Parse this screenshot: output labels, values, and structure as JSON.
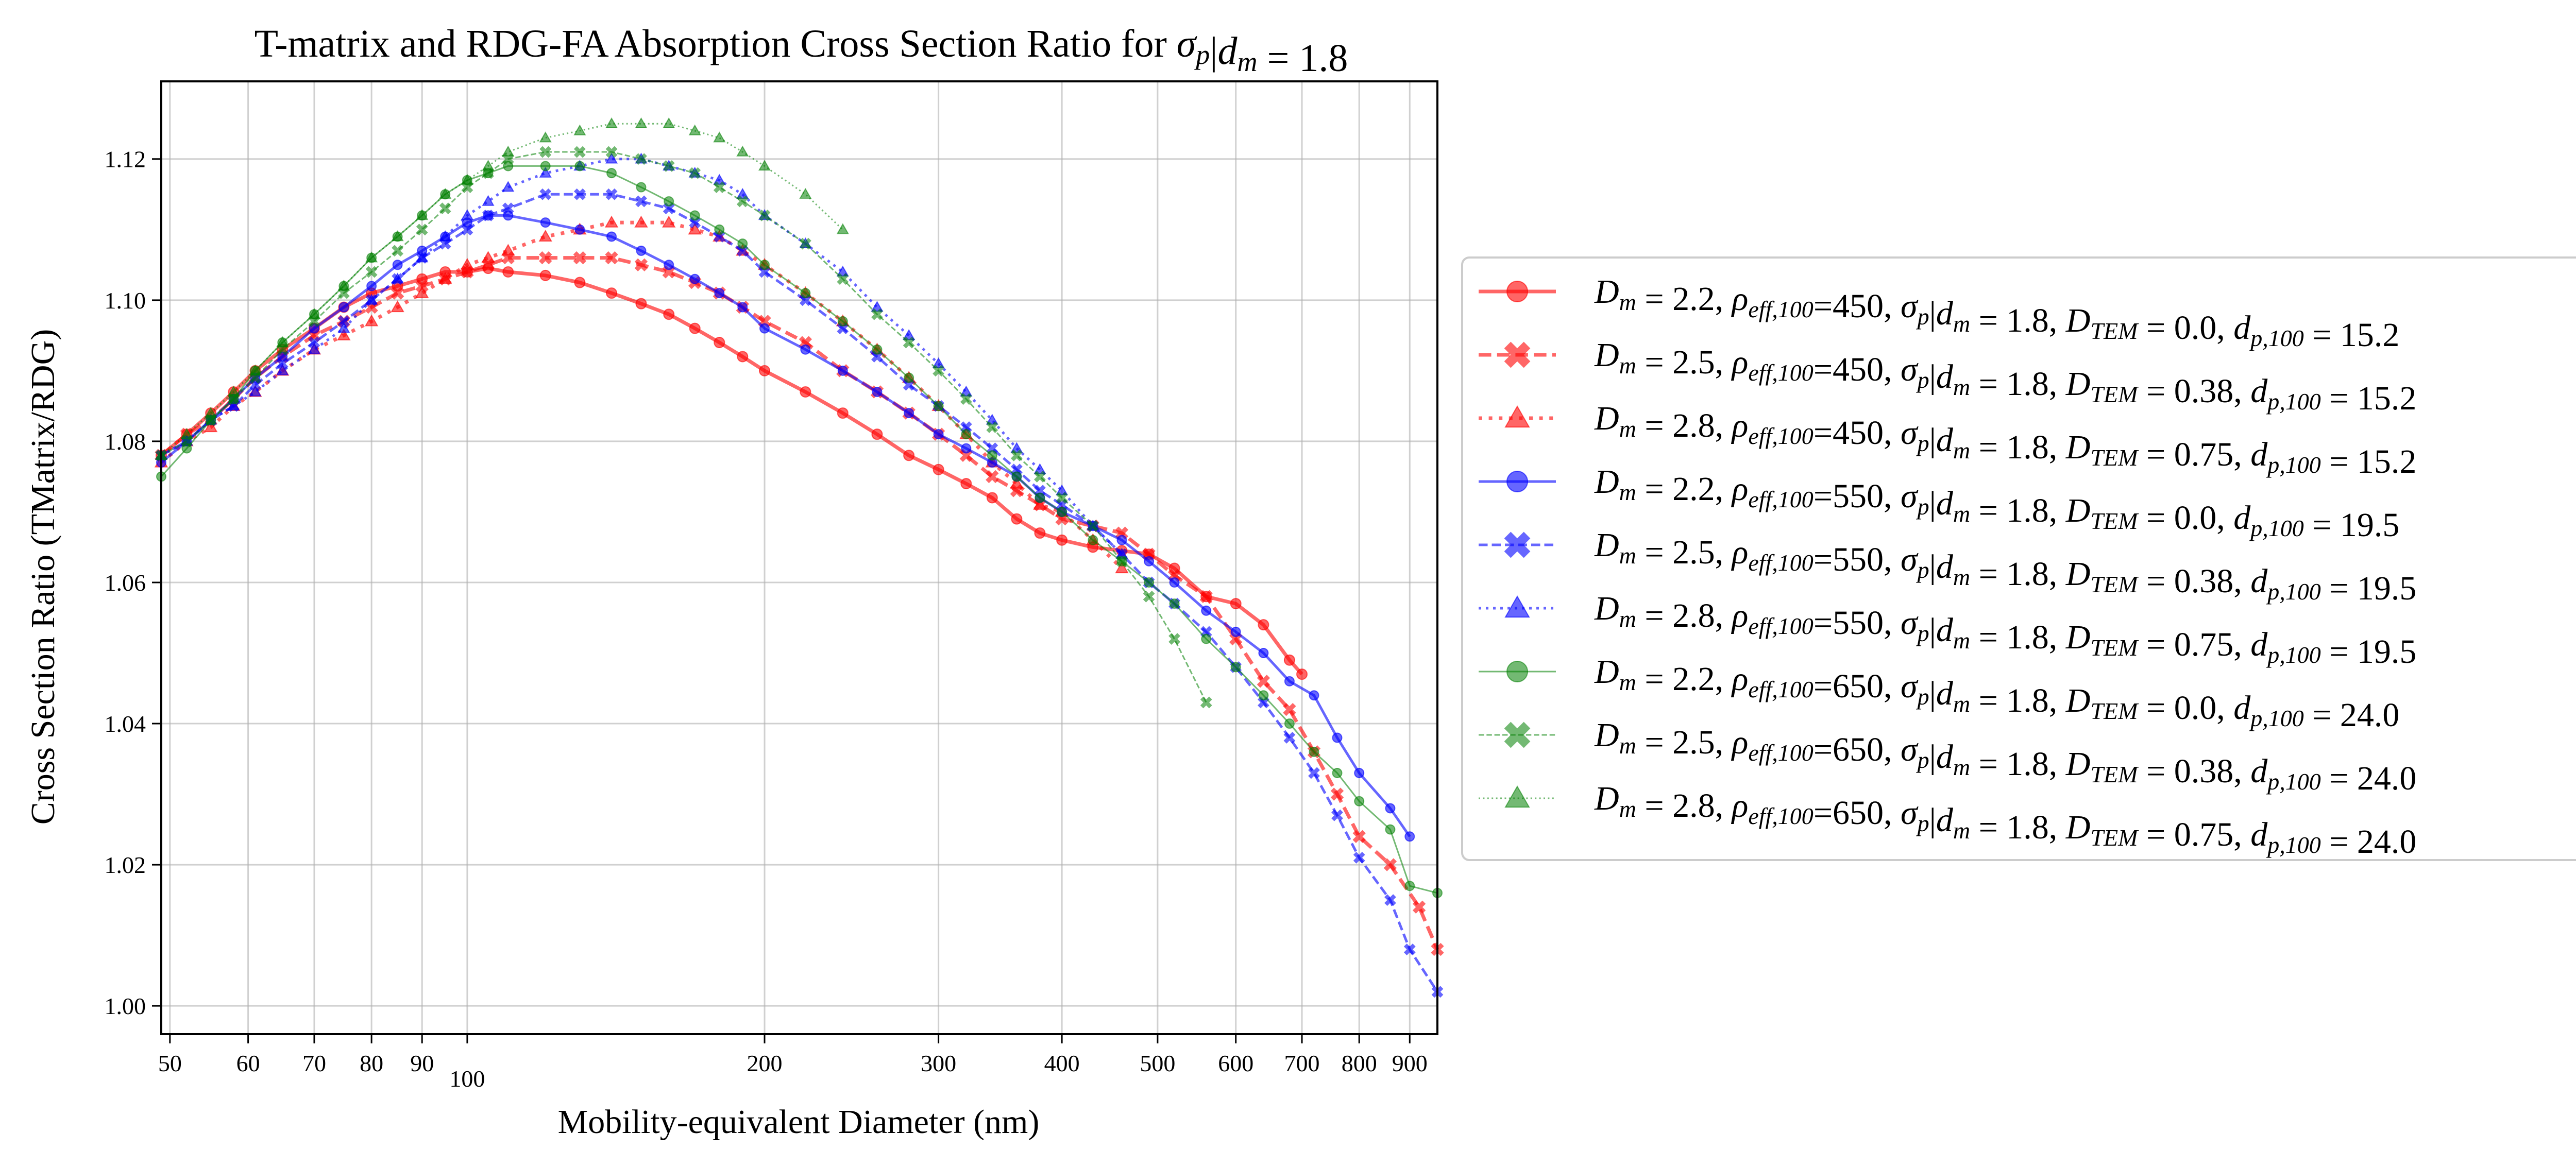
{
  "chart_data": {
    "type": "line",
    "title": "T-matrix and RDG-FA Absorption Cross Section Ratio for σp|dm = 1.8",
    "xlabel": "Mobility-equivalent Diameter (nm)",
    "ylabel": "Cross Section Ratio (TMatrix/RDG)",
    "xscale": "log",
    "xlim": [
      49,
      960
    ],
    "ylim": [
      0.996,
      1.131
    ],
    "xticks": [
      {
        "value": 50,
        "label": "50"
      },
      {
        "value": 60,
        "label": "60"
      },
      {
        "value": 70,
        "label": "70"
      },
      {
        "value": 80,
        "label": "80"
      },
      {
        "value": 90,
        "label": "90"
      },
      {
        "value": 100,
        "label": "100"
      },
      {
        "value": 200,
        "label": "200"
      },
      {
        "value": 300,
        "label": "300"
      },
      {
        "value": 400,
        "label": "400"
      },
      {
        "value": 500,
        "label": "500"
      },
      {
        "value": 600,
        "label": "600"
      },
      {
        "value": 700,
        "label": "700"
      },
      {
        "value": 800,
        "label": "800"
      },
      {
        "value": 900,
        "label": "900"
      }
    ],
    "yticks": [
      {
        "value": 1.0,
        "label": "1.00"
      },
      {
        "value": 1.02,
        "label": "1.02"
      },
      {
        "value": 1.04,
        "label": "1.04"
      },
      {
        "value": 1.06,
        "label": "1.06"
      },
      {
        "value": 1.08,
        "label": "1.08"
      },
      {
        "value": 1.1,
        "label": "1.10"
      },
      {
        "value": 1.12,
        "label": "1.12"
      }
    ],
    "grid": true,
    "legend_position": "right",
    "series": [
      {
        "name": "Dm = 2.2, ρeff,100=450, σp|dm = 1.8, DTEM = 0.0, dp,100 = 15.2",
        "color": "#ff0000",
        "dash": "solid",
        "marker": "circle",
        "style": "bold",
        "x": [
          49,
          52,
          55,
          58,
          61,
          65,
          70,
          75,
          80,
          85,
          90,
          95,
          100,
          105,
          110,
          120,
          130,
          140,
          150,
          160,
          170,
          180,
          190,
          200,
          220,
          240,
          260,
          280,
          300,
          320,
          340,
          360,
          380,
          400,
          430,
          460,
          490,
          520,
          560,
          600,
          640,
          680,
          700
        ],
        "y": [
          1.078,
          1.081,
          1.084,
          1.087,
          1.09,
          1.093,
          1.096,
          1.099,
          1.101,
          1.102,
          1.103,
          1.104,
          1.104,
          1.1045,
          1.104,
          1.1035,
          1.1025,
          1.101,
          1.0995,
          1.098,
          1.096,
          1.094,
          1.092,
          1.09,
          1.087,
          1.084,
          1.081,
          1.078,
          1.076,
          1.074,
          1.072,
          1.069,
          1.067,
          1.066,
          1.065,
          1.0645,
          1.064,
          1.062,
          1.058,
          1.057,
          1.054,
          1.049,
          1.047
        ]
      },
      {
        "name": "Dm = 2.5, ρeff,100=450, σp|dm = 1.8, DTEM = 0.38, dp,100 = 15.2",
        "color": "#ff0000",
        "dash": "dashed",
        "marker": "x",
        "style": "bold",
        "x": [
          49,
          52,
          55,
          58,
          61,
          65,
          70,
          75,
          80,
          85,
          90,
          95,
          100,
          105,
          110,
          120,
          130,
          140,
          150,
          160,
          170,
          180,
          190,
          200,
          220,
          240,
          260,
          280,
          300,
          320,
          340,
          360,
          380,
          400,
          430,
          460,
          490,
          520,
          560,
          600,
          640,
          680,
          720,
          760,
          800,
          860,
          920,
          960
        ],
        "y": [
          1.078,
          1.081,
          1.083,
          1.086,
          1.089,
          1.092,
          1.095,
          1.097,
          1.099,
          1.101,
          1.102,
          1.103,
          1.104,
          1.105,
          1.106,
          1.106,
          1.106,
          1.106,
          1.105,
          1.104,
          1.1025,
          1.101,
          1.099,
          1.097,
          1.094,
          1.09,
          1.087,
          1.084,
          1.081,
          1.078,
          1.075,
          1.073,
          1.071,
          1.069,
          1.068,
          1.067,
          1.064,
          1.061,
          1.058,
          1.052,
          1.046,
          1.042,
          1.036,
          1.03,
          1.024,
          1.02,
          1.014,
          1.008
        ]
      },
      {
        "name": "Dm = 2.8, ρeff,100=450, σp|dm = 1.8, DTEM = 0.75, dp,100 = 15.2",
        "color": "#ff0000",
        "dash": "dotted",
        "marker": "triangle",
        "style": "bold",
        "x": [
          49,
          52,
          55,
          58,
          61,
          65,
          70,
          75,
          80,
          85,
          90,
          95,
          100,
          105,
          110,
          120,
          130,
          140,
          150,
          160,
          170,
          180,
          190,
          200,
          220,
          240,
          260,
          280,
          300,
          320,
          340,
          360,
          380,
          400,
          430,
          460
        ],
        "y": [
          1.077,
          1.08,
          1.082,
          1.085,
          1.087,
          1.09,
          1.093,
          1.095,
          1.097,
          1.099,
          1.101,
          1.103,
          1.105,
          1.106,
          1.107,
          1.109,
          1.11,
          1.111,
          1.111,
          1.111,
          1.11,
          1.109,
          1.107,
          1.105,
          1.101,
          1.097,
          1.093,
          1.089,
          1.085,
          1.081,
          1.077,
          1.074,
          1.071,
          1.07,
          1.066,
          1.062
        ]
      },
      {
        "name": "Dm = 2.2, ρeff,100=550, σp|dm = 1.8, DTEM = 0.0, dp,100 = 19.5",
        "color": "#0000ff",
        "dash": "solid",
        "marker": "circle",
        "style": "light",
        "x": [
          49,
          52,
          55,
          58,
          61,
          65,
          70,
          75,
          80,
          85,
          90,
          95,
          100,
          105,
          110,
          120,
          130,
          140,
          150,
          160,
          170,
          180,
          190,
          200,
          220,
          240,
          260,
          280,
          300,
          320,
          340,
          360,
          380,
          400,
          430,
          460,
          490,
          520,
          560,
          600,
          640,
          680,
          720,
          760,
          800,
          860,
          900
        ],
        "y": [
          1.077,
          1.08,
          1.083,
          1.086,
          1.089,
          1.092,
          1.096,
          1.099,
          1.102,
          1.105,
          1.107,
          1.109,
          1.111,
          1.112,
          1.112,
          1.111,
          1.11,
          1.109,
          1.107,
          1.105,
          1.103,
          1.101,
          1.099,
          1.096,
          1.093,
          1.09,
          1.087,
          1.084,
          1.081,
          1.079,
          1.077,
          1.075,
          1.072,
          1.07,
          1.068,
          1.066,
          1.063,
          1.06,
          1.056,
          1.053,
          1.05,
          1.046,
          1.044,
          1.038,
          1.033,
          1.028,
          1.024
        ]
      },
      {
        "name": "Dm = 2.5, ρeff,100=550, σp|dm = 1.8, DTEM = 0.38, dp,100 = 19.5",
        "color": "#0000ff",
        "dash": "dashed",
        "marker": "x",
        "style": "light",
        "x": [
          49,
          52,
          55,
          58,
          61,
          65,
          70,
          75,
          80,
          85,
          90,
          95,
          100,
          105,
          110,
          120,
          130,
          140,
          150,
          160,
          170,
          180,
          190,
          200,
          220,
          240,
          260,
          280,
          300,
          320,
          340,
          360,
          380,
          400,
          430,
          460,
          490,
          520,
          560,
          600,
          640,
          680,
          720,
          760,
          800,
          860,
          900,
          960
        ],
        "y": [
          1.078,
          1.08,
          1.083,
          1.085,
          1.088,
          1.091,
          1.094,
          1.097,
          1.1,
          1.103,
          1.106,
          1.108,
          1.11,
          1.112,
          1.113,
          1.115,
          1.115,
          1.115,
          1.114,
          1.113,
          1.111,
          1.109,
          1.107,
          1.104,
          1.1,
          1.096,
          1.092,
          1.088,
          1.085,
          1.082,
          1.079,
          1.076,
          1.073,
          1.071,
          1.068,
          1.064,
          1.06,
          1.057,
          1.053,
          1.048,
          1.043,
          1.038,
          1.033,
          1.027,
          1.021,
          1.015,
          1.008,
          1.002
        ]
      },
      {
        "name": "Dm = 2.8, ρeff,100=550, σp|dm = 1.8, DTEM = 0.75, dp,100 = 19.5",
        "color": "#0000ff",
        "dash": "dotted",
        "marker": "triangle",
        "style": "light",
        "x": [
          49,
          52,
          55,
          58,
          61,
          65,
          70,
          75,
          80,
          85,
          90,
          95,
          100,
          105,
          110,
          120,
          130,
          140,
          150,
          160,
          170,
          180,
          190,
          200,
          220,
          240,
          260,
          280,
          300,
          320,
          340,
          360,
          380,
          400,
          430,
          460
        ],
        "y": [
          1.078,
          1.08,
          1.083,
          1.085,
          1.087,
          1.09,
          1.093,
          1.096,
          1.1,
          1.103,
          1.106,
          1.109,
          1.112,
          1.114,
          1.116,
          1.118,
          1.119,
          1.12,
          1.12,
          1.119,
          1.118,
          1.117,
          1.115,
          1.112,
          1.108,
          1.104,
          1.099,
          1.095,
          1.091,
          1.087,
          1.083,
          1.079,
          1.076,
          1.073,
          1.068,
          1.064
        ]
      },
      {
        "name": "Dm = 2.2, ρeff,100=650, σp|dm = 1.8, DTEM = 0.0, dp,100 = 24.0",
        "color": "#008000",
        "dash": "solid",
        "marker": "circle",
        "style": "thin",
        "x": [
          49,
          52,
          55,
          58,
          61,
          65,
          70,
          75,
          80,
          85,
          90,
          95,
          100,
          105,
          110,
          120,
          130,
          140,
          150,
          160,
          170,
          180,
          190,
          200,
          220,
          240,
          260,
          280,
          300,
          320,
          340,
          360,
          380,
          400,
          430,
          460,
          490,
          520,
          560,
          600,
          640,
          680,
          720,
          760,
          800,
          860,
          900,
          960
        ],
        "y": [
          1.075,
          1.079,
          1.083,
          1.086,
          1.09,
          1.094,
          1.098,
          1.102,
          1.106,
          1.109,
          1.112,
          1.115,
          1.117,
          1.118,
          1.119,
          1.119,
          1.119,
          1.118,
          1.116,
          1.114,
          1.112,
          1.11,
          1.108,
          1.105,
          1.101,
          1.097,
          1.093,
          1.089,
          1.085,
          1.081,
          1.078,
          1.075,
          1.072,
          1.07,
          1.066,
          1.063,
          1.06,
          1.057,
          1.052,
          1.048,
          1.044,
          1.04,
          1.036,
          1.033,
          1.029,
          1.025,
          1.017,
          1.016
        ]
      },
      {
        "name": "Dm = 2.5, ρeff,100=650, σp|dm = 1.8, DTEM = 0.38, dp,100 = 24.0",
        "color": "#008000",
        "dash": "dashed",
        "marker": "x",
        "style": "thin",
        "x": [
          49,
          52,
          55,
          58,
          61,
          65,
          70,
          75,
          80,
          85,
          90,
          95,
          100,
          105,
          110,
          120,
          130,
          140,
          150,
          160,
          170,
          180,
          190,
          200,
          220,
          240,
          260,
          280,
          300,
          320,
          340,
          360,
          380,
          400,
          430,
          460,
          490,
          520,
          560
        ],
        "y": [
          1.078,
          1.08,
          1.083,
          1.086,
          1.089,
          1.093,
          1.097,
          1.101,
          1.104,
          1.107,
          1.11,
          1.113,
          1.116,
          1.118,
          1.12,
          1.121,
          1.121,
          1.121,
          1.12,
          1.119,
          1.118,
          1.116,
          1.114,
          1.112,
          1.108,
          1.103,
          1.098,
          1.094,
          1.09,
          1.086,
          1.082,
          1.078,
          1.075,
          1.072,
          1.068,
          1.063,
          1.058,
          1.052,
          1.043
        ]
      },
      {
        "name": "Dm = 2.8, ρeff,100=650, σp|dm = 1.8, DTEM = 0.75, dp,100 = 24.0",
        "color": "#008000",
        "dash": "dotted",
        "marker": "triangle",
        "style": "thin",
        "x": [
          49,
          52,
          55,
          58,
          61,
          65,
          70,
          75,
          80,
          85,
          90,
          95,
          100,
          105,
          110,
          120,
          130,
          140,
          150,
          160,
          170,
          180,
          190,
          200,
          220,
          240
        ],
        "y": [
          1.078,
          1.081,
          1.084,
          1.087,
          1.09,
          1.094,
          1.098,
          1.102,
          1.106,
          1.109,
          1.112,
          1.115,
          1.117,
          1.119,
          1.121,
          1.123,
          1.124,
          1.125,
          1.125,
          1.125,
          1.124,
          1.123,
          1.121,
          1.119,
          1.115,
          1.11
        ]
      }
    ]
  }
}
